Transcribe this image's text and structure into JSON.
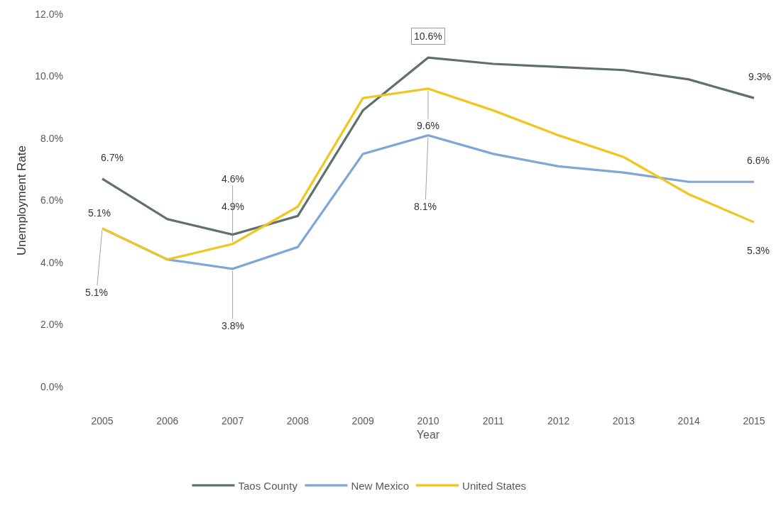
{
  "chart_data": {
    "type": "line",
    "xlabel": "Year",
    "ylabel": "Unemployment Rate",
    "categories": [
      "2005",
      "2006",
      "2007",
      "2008",
      "2009",
      "2010",
      "2011",
      "2012",
      "2013",
      "2014",
      "2015"
    ],
    "ylim": [
      0,
      12
    ],
    "yticks": [
      {
        "value": 0,
        "label": "0.0%"
      },
      {
        "value": 2,
        "label": "2.0%"
      },
      {
        "value": 4,
        "label": "4.0%"
      },
      {
        "value": 6,
        "label": "6.0%"
      },
      {
        "value": 8,
        "label": "8.0%"
      },
      {
        "value": 10,
        "label": "10.0%"
      },
      {
        "value": 12,
        "label": "12.0%"
      }
    ],
    "grid": false,
    "legend": "bottom",
    "marker": "none",
    "line_style": "solid",
    "series": [
      {
        "name": "Taos County",
        "color": "#5e7169",
        "values": [
          6.7,
          5.4,
          4.9,
          5.5,
          8.9,
          10.6,
          10.4,
          10.3,
          10.2,
          9.9,
          9.3
        ],
        "value_labels": [
          "6.7%",
          null,
          "4.9%",
          null,
          null,
          "10.6%",
          null,
          null,
          null,
          null,
          "9.3%"
        ]
      },
      {
        "name": "New Mexico",
        "color": "#7fa6d6",
        "values": [
          5.1,
          4.1,
          3.8,
          4.5,
          7.5,
          8.1,
          7.5,
          7.1,
          6.9,
          6.6,
          6.6
        ],
        "value_labels": [
          "5.1%",
          null,
          "3.8%",
          null,
          null,
          "8.1%",
          null,
          null,
          null,
          null,
          "6.6%"
        ]
      },
      {
        "name": "United States",
        "color": "#f0c61e",
        "values": [
          5.1,
          4.1,
          4.6,
          5.8,
          9.3,
          9.6,
          8.9,
          8.1,
          7.4,
          6.2,
          5.3
        ],
        "value_labels": [
          "5.1%",
          null,
          "4.6%",
          null,
          null,
          "9.6%",
          null,
          null,
          null,
          null,
          "5.3%"
        ]
      }
    ]
  }
}
